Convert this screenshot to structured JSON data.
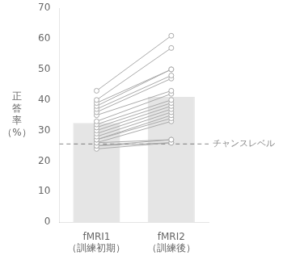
{
  "chart_data": {
    "type": "bar",
    "categories": [
      "fMRI1\n（訓練初期）",
      "fMRI2\n（訓練後）"
    ],
    "y_label": "正\n答\n率\n（%）",
    "ylim": [
      0,
      70
    ],
    "yticks": [
      0,
      10,
      20,
      30,
      40,
      50,
      60,
      70
    ],
    "grid": false,
    "series": [
      {
        "type": "bar",
        "values": [
          32.5,
          41.0
        ]
      },
      {
        "type": "line",
        "color": "#aaaaaa",
        "marker": "circle",
        "values": [
          [
            43,
            40,
            39,
            38,
            37,
            36,
            35,
            33,
            32,
            31,
            30,
            29,
            28,
            27,
            27,
            26,
            26,
            25,
            25,
            24
          ],
          [
            61,
            57,
            50,
            50,
            48,
            47,
            43,
            42,
            40,
            39,
            38,
            37,
            36,
            35,
            34,
            33,
            27,
            27,
            26,
            26
          ]
        ]
      }
    ],
    "reference_line": {
      "value": 25.6,
      "label": "チャンスレベル",
      "line_style": "dashed",
      "color": "#888888"
    }
  }
}
